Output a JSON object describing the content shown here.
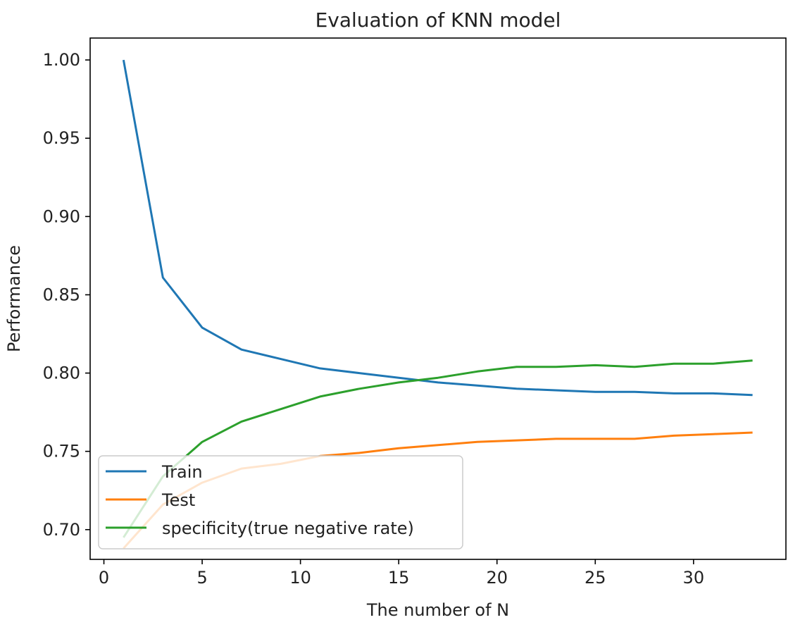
{
  "chart_data": {
    "type": "line",
    "title": "Evaluation of KNN model",
    "xlabel": "The number of N",
    "ylabel": "Performance",
    "xlim": [
      -0.7,
      34.7
    ],
    "ylim": [
      0.681,
      1.014
    ],
    "xticks": [
      0,
      5,
      10,
      15,
      20,
      25,
      30
    ],
    "yticks": [
      0.7,
      0.75,
      0.8,
      0.85,
      0.9,
      0.95,
      1.0
    ],
    "x": [
      1,
      3,
      5,
      7,
      9,
      11,
      13,
      15,
      17,
      19,
      21,
      23,
      25,
      27,
      29,
      31,
      33
    ],
    "series": [
      {
        "name": "Train",
        "color": "#1f77b4",
        "values": [
          1.0,
          0.861,
          0.829,
          0.815,
          0.809,
          0.803,
          0.8,
          0.797,
          0.794,
          0.792,
          0.79,
          0.789,
          0.788,
          0.788,
          0.787,
          0.787,
          0.786
        ]
      },
      {
        "name": "Test",
        "color": "#ff7f0e",
        "values": [
          0.688,
          0.716,
          0.73,
          0.739,
          0.742,
          0.747,
          0.749,
          0.752,
          0.754,
          0.756,
          0.757,
          0.758,
          0.758,
          0.758,
          0.76,
          0.761,
          0.762
        ]
      },
      {
        "name": "specificity(true negative rate)",
        "color": "#2ca02c",
        "values": [
          0.695,
          0.734,
          0.756,
          0.769,
          0.777,
          0.785,
          0.79,
          0.794,
          0.797,
          0.801,
          0.804,
          0.804,
          0.805,
          0.804,
          0.806,
          0.806,
          0.808
        ]
      }
    ],
    "grid": false,
    "legend": "lower-left"
  }
}
